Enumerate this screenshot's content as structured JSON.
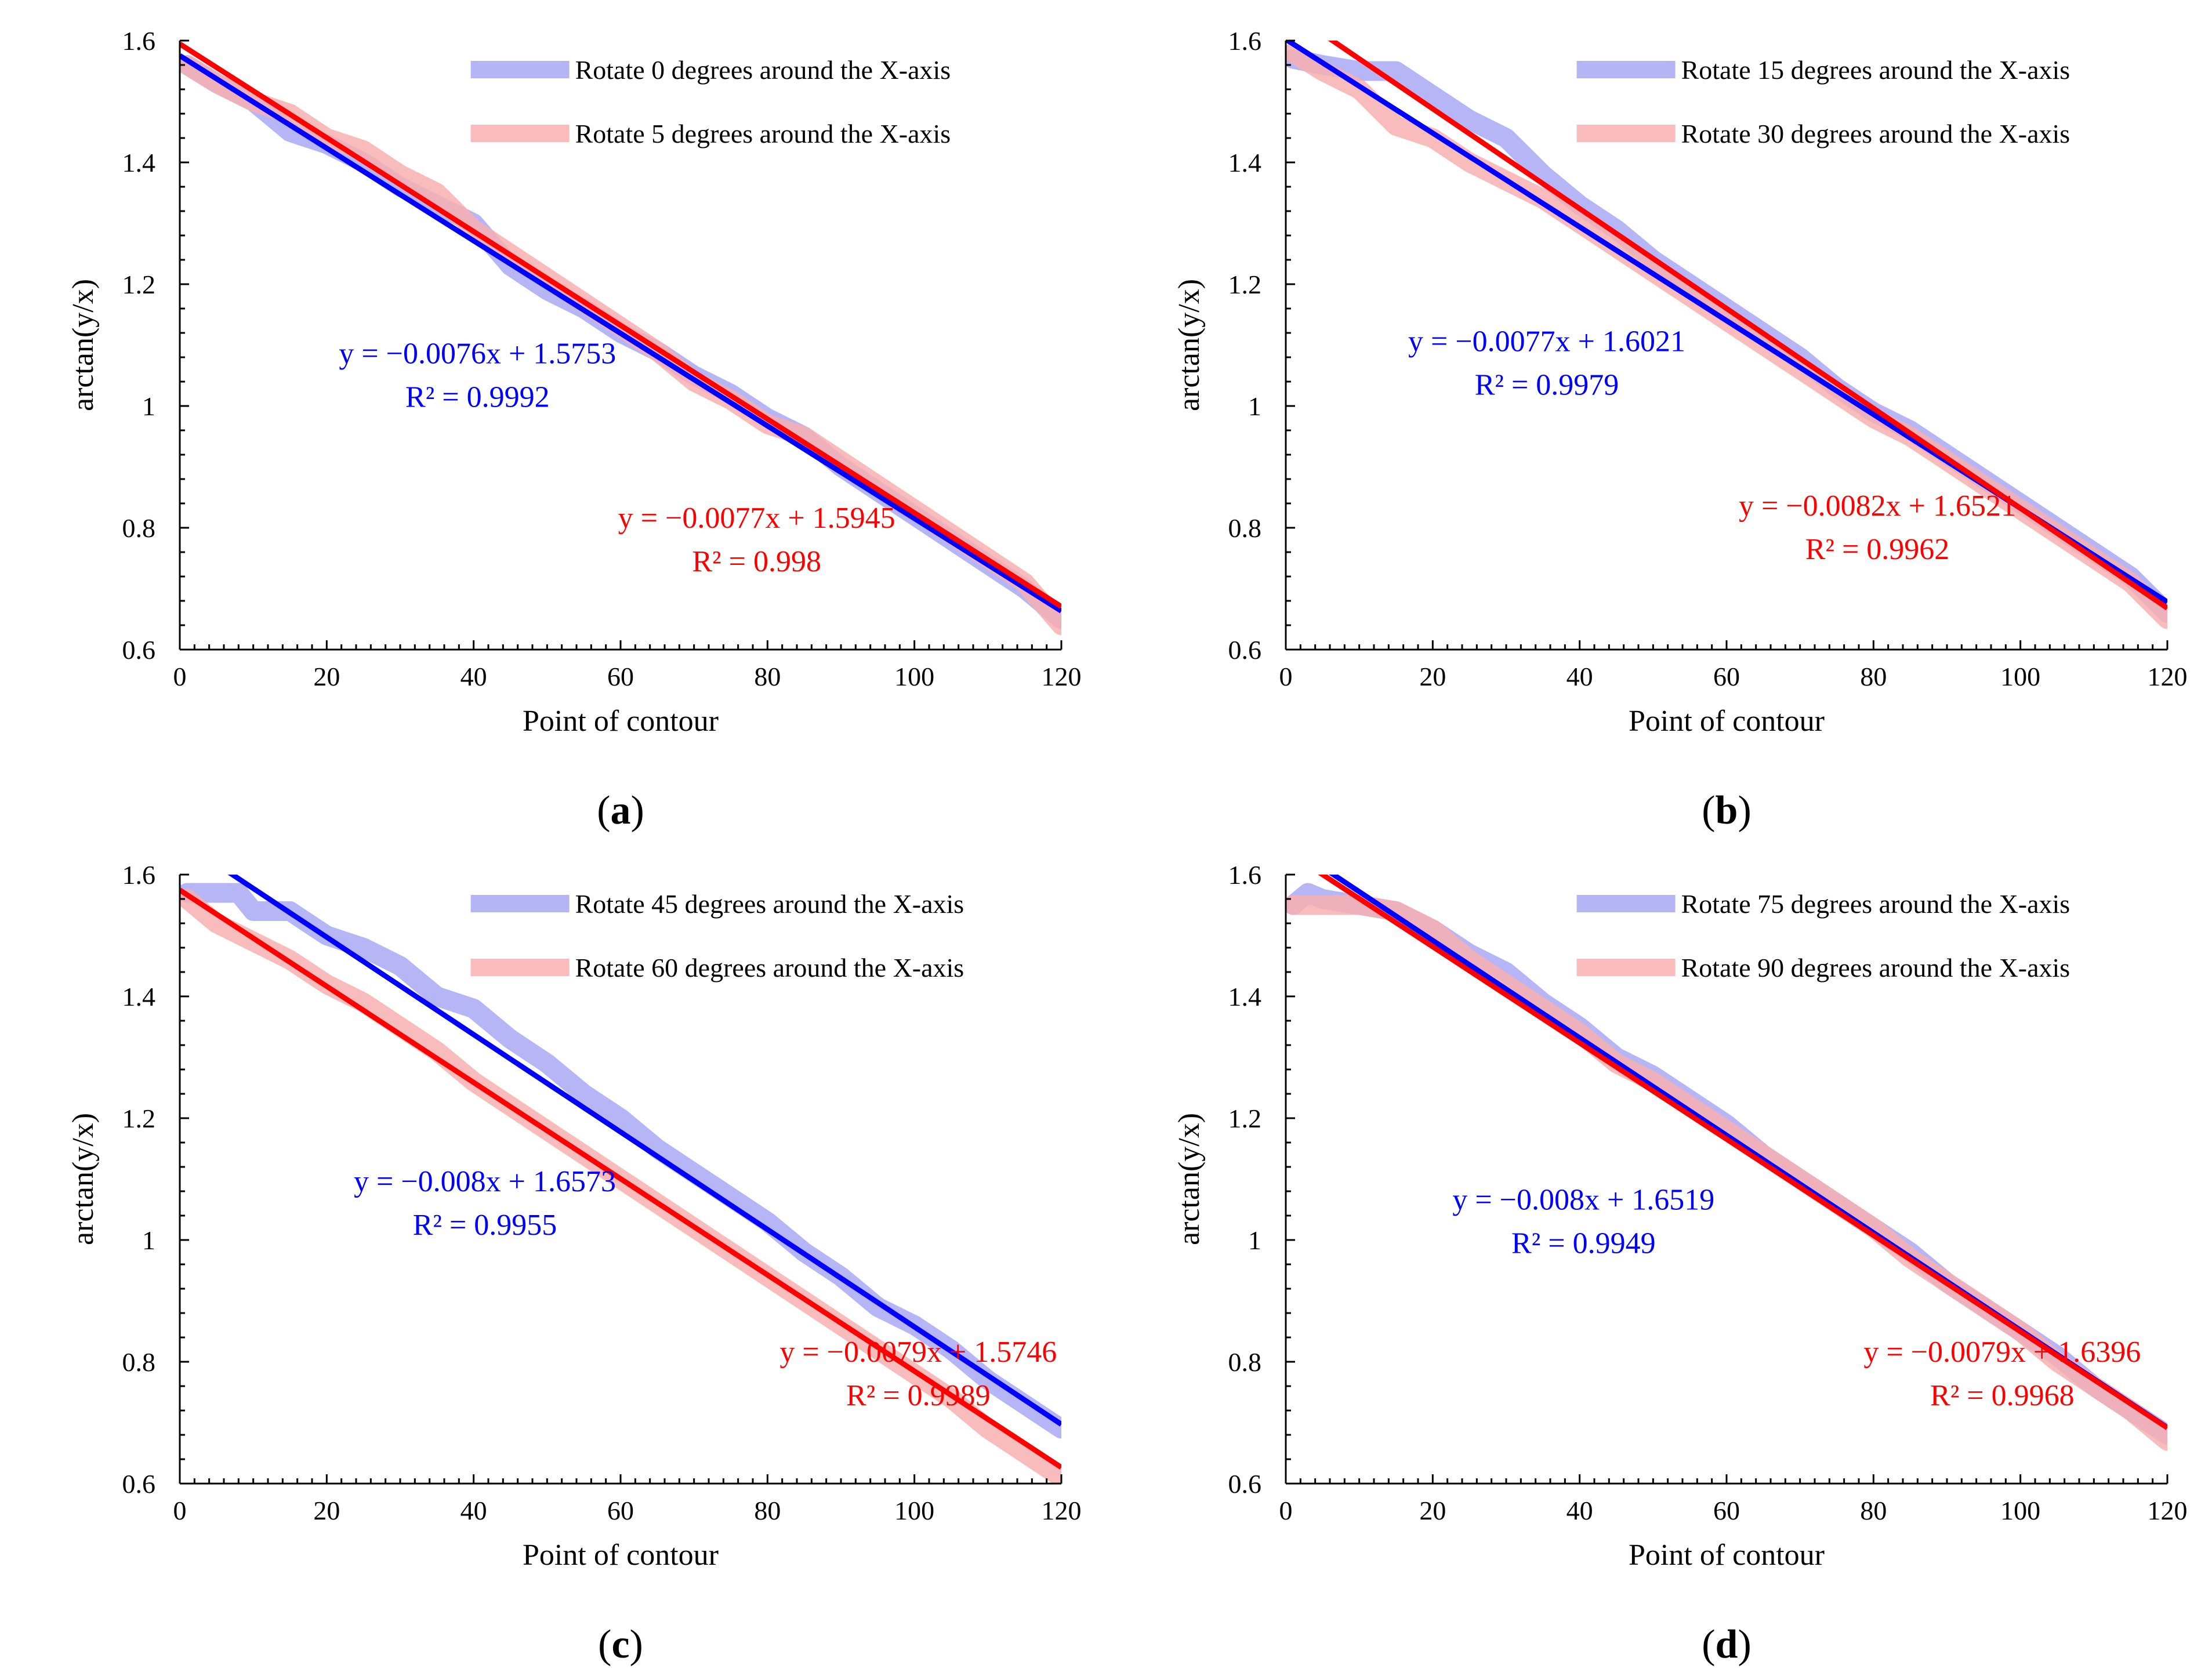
{
  "colors": {
    "blue_fit": "#0000ff",
    "red_fit": "#ff0000",
    "blue_data": "#a9a9f5",
    "red_data": "#f8b0b0",
    "axis": "#000000"
  },
  "axis_config": {
    "xlabel": "Point of contour",
    "ylabel": "arctan(y/x)",
    "xlim": [
      0,
      120
    ],
    "ylim": [
      0.6,
      1.6
    ],
    "xticks": [
      "0",
      "20",
      "40",
      "60",
      "80",
      "100",
      "120"
    ],
    "yticks": [
      "0.6",
      "0.8",
      "1",
      "1.2",
      "1.4",
      "1.6"
    ],
    "grid": false
  },
  "chart_data": [
    {
      "type": "line",
      "panel_label": "a",
      "xlabel": "Point of contour",
      "ylabel": "arctan(y/x)",
      "xlim": [
        0,
        120
      ],
      "ylim": [
        0.6,
        1.6
      ],
      "legend_position": "top-right",
      "series": [
        {
          "name": "Rotate 0 degrees around the X-axis",
          "color_key": "blue",
          "x": [
            1,
            5,
            10,
            15,
            20,
            25,
            30,
            35,
            40,
            45,
            50,
            55,
            60,
            65,
            70,
            75,
            80,
            85,
            90,
            95,
            100,
            105,
            110,
            115,
            120
          ],
          "y": [
            1.56,
            1.53,
            1.5,
            1.45,
            1.43,
            1.4,
            1.36,
            1.33,
            1.3,
            1.23,
            1.19,
            1.16,
            1.12,
            1.09,
            1.05,
            1.02,
            0.98,
            0.95,
            0.9,
            0.86,
            0.82,
            0.78,
            0.74,
            0.7,
            0.65
          ]
        },
        {
          "name": "Rotate 5 degrees around the X-axis",
          "color_key": "red",
          "x": [
            1,
            5,
            10,
            15,
            20,
            25,
            30,
            35,
            40,
            45,
            50,
            55,
            60,
            65,
            70,
            75,
            80,
            85,
            90,
            95,
            100,
            105,
            110,
            115,
            120
          ],
          "y": [
            1.56,
            1.53,
            1.5,
            1.48,
            1.44,
            1.42,
            1.38,
            1.35,
            1.29,
            1.25,
            1.21,
            1.17,
            1.13,
            1.09,
            1.04,
            1.01,
            0.97,
            0.95,
            0.91,
            0.87,
            0.83,
            0.79,
            0.75,
            0.71,
            0.64
          ]
        }
      ],
      "fits": [
        {
          "color_key": "blue",
          "slope": -0.0076,
          "intercept": 1.5753,
          "equation": "y = −0.0076x + 1.5753",
          "r2": "R² = 0.9992",
          "label_x": 20,
          "label_y": 1.07
        },
        {
          "color_key": "red",
          "slope": -0.0077,
          "intercept": 1.5945,
          "equation": "y = −0.0077x + 1.5945",
          "r2": "R² = 0.998",
          "label_x": 58,
          "label_y": 0.8
        }
      ]
    },
    {
      "type": "line",
      "panel_label": "b",
      "xlabel": "Point of contour",
      "ylabel": "arctan(y/x)",
      "xlim": [
        0,
        120
      ],
      "ylim": [
        0.6,
        1.6
      ],
      "legend_position": "top-right",
      "series": [
        {
          "name": "Rotate 15 degrees around the X-axis",
          "color_key": "blue",
          "x": [
            1,
            5,
            10,
            15,
            20,
            25,
            30,
            35,
            40,
            45,
            50,
            55,
            60,
            65,
            70,
            75,
            80,
            85,
            90,
            95,
            100,
            105,
            110,
            115,
            120
          ],
          "y": [
            1.57,
            1.56,
            1.55,
            1.55,
            1.51,
            1.47,
            1.44,
            1.38,
            1.33,
            1.29,
            1.24,
            1.2,
            1.16,
            1.12,
            1.08,
            1.03,
            0.99,
            0.96,
            0.92,
            0.88,
            0.84,
            0.8,
            0.76,
            0.72,
            0.66
          ]
        },
        {
          "name": "Rotate 30 degrees around the X-axis",
          "color_key": "red",
          "x": [
            1,
            5,
            10,
            15,
            20,
            25,
            30,
            35,
            40,
            45,
            50,
            55,
            60,
            65,
            70,
            75,
            80,
            85,
            90,
            95,
            100,
            105,
            110,
            115,
            120
          ],
          "y": [
            1.58,
            1.55,
            1.52,
            1.46,
            1.44,
            1.4,
            1.37,
            1.34,
            1.3,
            1.26,
            1.22,
            1.18,
            1.14,
            1.1,
            1.06,
            1.02,
            0.98,
            0.95,
            0.91,
            0.87,
            0.83,
            0.79,
            0.75,
            0.71,
            0.65
          ]
        }
      ],
      "fits": [
        {
          "color_key": "blue",
          "slope": -0.0077,
          "intercept": 1.6021,
          "equation": "y = −0.0077x + 1.6021",
          "r2": "R² = 0.9979",
          "label_x": 15,
          "label_y": 1.09
        },
        {
          "color_key": "red",
          "slope": -0.0082,
          "intercept": 1.6521,
          "equation": "y = −0.0082x + 1.6521",
          "r2": "R² = 0.9962",
          "label_x": 60,
          "label_y": 0.82
        }
      ]
    },
    {
      "type": "line",
      "panel_label": "c",
      "xlabel": "Point of contour",
      "ylabel": "arctan(y/x)",
      "xlim": [
        0,
        120
      ],
      "ylim": [
        0.6,
        1.6
      ],
      "legend_position": "top-right",
      "series": [
        {
          "name": "Rotate 45 degrees around the X-axis",
          "color_key": "blue",
          "x": [
            1,
            5,
            8,
            10,
            15,
            20,
            25,
            30,
            35,
            40,
            45,
            50,
            55,
            60,
            65,
            70,
            75,
            80,
            85,
            90,
            95,
            100,
            105,
            110,
            115,
            120
          ],
          "y": [
            1.57,
            1.57,
            1.57,
            1.54,
            1.54,
            1.5,
            1.48,
            1.45,
            1.4,
            1.38,
            1.33,
            1.29,
            1.24,
            1.2,
            1.15,
            1.11,
            1.07,
            1.03,
            0.98,
            0.94,
            0.89,
            0.86,
            0.82,
            0.77,
            0.73,
            0.69
          ]
        },
        {
          "name": "Rotate 60 degrees around the X-axis",
          "color_key": "red",
          "x": [
            1,
            5,
            10,
            15,
            20,
            25,
            30,
            35,
            40,
            45,
            50,
            55,
            60,
            65,
            70,
            75,
            80,
            85,
            90,
            95,
            100,
            105,
            110,
            115,
            120
          ],
          "y": [
            1.56,
            1.52,
            1.49,
            1.46,
            1.42,
            1.39,
            1.35,
            1.31,
            1.26,
            1.22,
            1.18,
            1.14,
            1.1,
            1.06,
            1.02,
            0.98,
            0.94,
            0.9,
            0.86,
            0.82,
            0.78,
            0.74,
            0.69,
            0.65,
            0.61
          ]
        }
      ],
      "fits": [
        {
          "color_key": "blue",
          "slope": -0.008,
          "intercept": 1.6573,
          "equation": "y = −0.008x + 1.6573",
          "r2": "R² = 0.9955",
          "label_x": 21,
          "label_y": 1.08
        },
        {
          "color_key": "red",
          "slope": -0.0079,
          "intercept": 1.5746,
          "equation": "y = −0.0079x + 1.5746",
          "r2": "R² = 0.9989",
          "label_x": 80,
          "label_y": 0.8
        }
      ]
    },
    {
      "type": "line",
      "panel_label": "d",
      "xlabel": "Point of contour",
      "ylabel": "arctan(y/x)",
      "xlim": [
        0,
        120
      ],
      "ylim": [
        0.6,
        1.6
      ],
      "legend_position": "top-right",
      "series": [
        {
          "name": "Rotate 75 degrees around the X-axis",
          "color_key": "blue",
          "x": [
            1,
            3,
            5,
            10,
            15,
            20,
            25,
            30,
            35,
            40,
            45,
            50,
            55,
            60,
            65,
            70,
            75,
            80,
            85,
            90,
            95,
            100,
            105,
            110,
            115,
            120
          ],
          "y": [
            1.55,
            1.57,
            1.56,
            1.55,
            1.54,
            1.51,
            1.47,
            1.44,
            1.39,
            1.35,
            1.3,
            1.27,
            1.23,
            1.19,
            1.14,
            1.1,
            1.06,
            1.02,
            0.98,
            0.93,
            0.89,
            0.85,
            0.81,
            0.76,
            0.72,
            0.68
          ]
        },
        {
          "name": "Rotate 90 degrees around the X-axis",
          "color_key": "red",
          "x": [
            1,
            5,
            10,
            15,
            20,
            25,
            30,
            35,
            40,
            45,
            50,
            55,
            60,
            65,
            70,
            75,
            80,
            85,
            90,
            95,
            100,
            105,
            110,
            115,
            120
          ],
          "y": [
            1.55,
            1.55,
            1.55,
            1.54,
            1.51,
            1.46,
            1.42,
            1.38,
            1.34,
            1.29,
            1.26,
            1.22,
            1.18,
            1.14,
            1.1,
            1.06,
            1.02,
            0.97,
            0.93,
            0.89,
            0.85,
            0.8,
            0.76,
            0.72,
            0.67
          ]
        }
      ],
      "fits": [
        {
          "color_key": "blue",
          "slope": -0.008,
          "intercept": 1.6519,
          "equation": "y = −0.008x + 1.6519",
          "r2": "R² = 0.9949",
          "label_x": 20,
          "label_y": 1.05
        },
        {
          "color_key": "red",
          "slope": -0.0079,
          "intercept": 1.6396,
          "equation": "y = −0.0079x + 1.6396",
          "r2": "R² = 0.9968",
          "label_x": 77,
          "label_y": 0.8
        }
      ]
    }
  ]
}
